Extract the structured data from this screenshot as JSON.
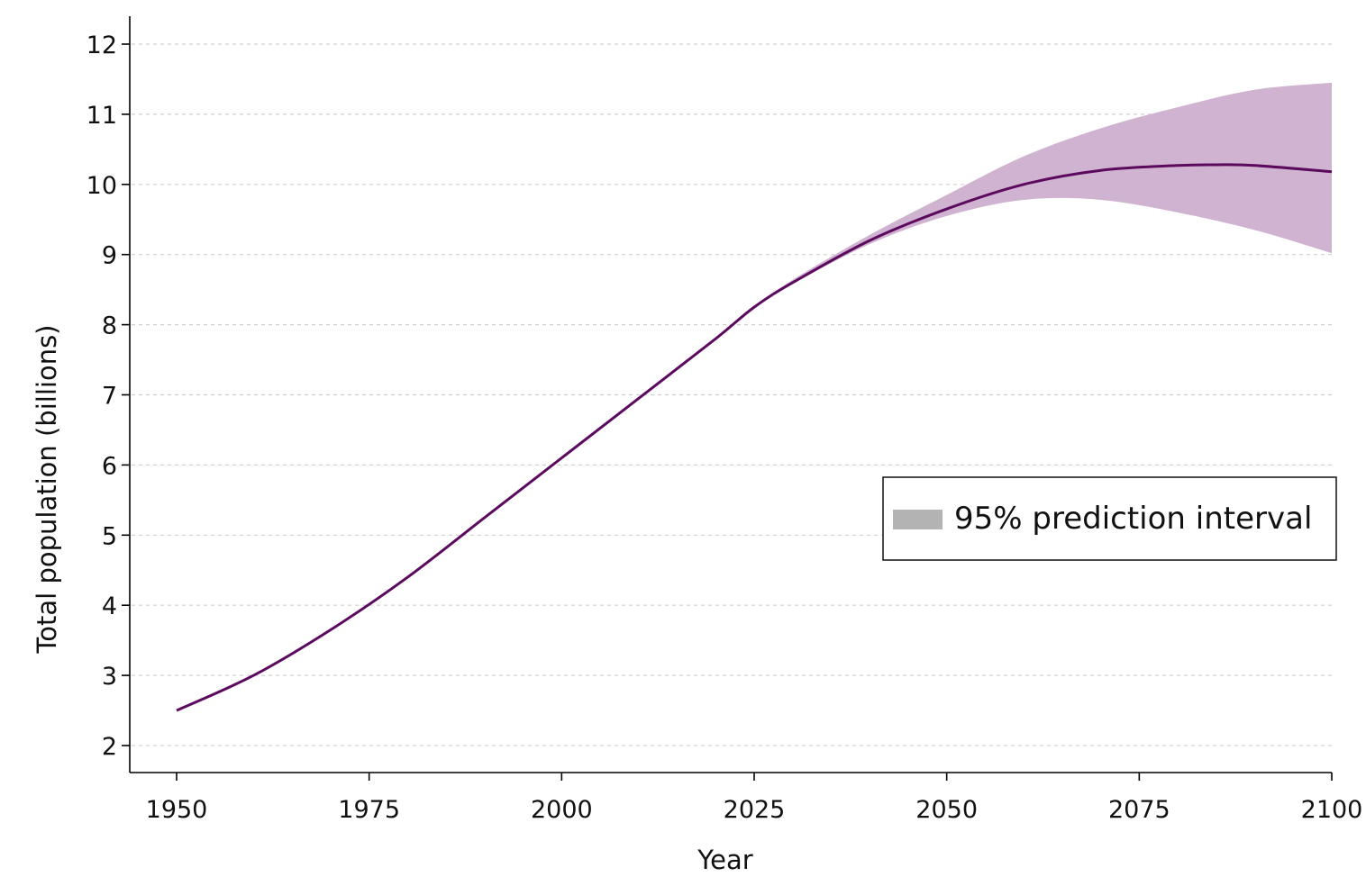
{
  "chart_data": {
    "type": "line",
    "title": "",
    "xlabel": "Year",
    "ylabel": "Total population (billions)",
    "xlim": [
      1950,
      2100
    ],
    "ylim": [
      1.6,
      12.4
    ],
    "x_ticks": [
      1950,
      1975,
      2000,
      2025,
      2050,
      2075,
      2100
    ],
    "y_ticks": [
      2,
      3,
      4,
      5,
      6,
      7,
      8,
      9,
      10,
      11,
      12
    ],
    "grid": "horizontal dashed",
    "legend": {
      "placement": "center-right",
      "label": "95% prediction interval",
      "swatch_color": "#b3b3b3"
    },
    "colors": {
      "line": "#5c0a5e",
      "band": "#cfb3d0",
      "grid": "#d0d0d0",
      "axis": "#000000"
    },
    "series": [
      {
        "x": [
          1950,
          1960,
          1970,
          1980,
          1990,
          2000,
          2010,
          2020,
          2025,
          2030,
          2040,
          2050,
          2060,
          2070,
          2080,
          2085,
          2090,
          2100
        ],
        "values": [
          2.5,
          3.0,
          3.65,
          4.4,
          5.25,
          6.1,
          6.95,
          7.8,
          8.25,
          8.6,
          9.2,
          9.65,
          10.0,
          10.2,
          10.27,
          10.28,
          10.27,
          10.18
        ]
      }
    ],
    "interval": {
      "x": [
        2025,
        2030,
        2040,
        2050,
        2060,
        2070,
        2080,
        2090,
        2100
      ],
      "lower": [
        8.25,
        8.58,
        9.15,
        9.55,
        9.78,
        9.78,
        9.6,
        9.35,
        9.02
      ],
      "upper": [
        8.25,
        8.64,
        9.28,
        9.85,
        10.4,
        10.8,
        11.1,
        11.35,
        11.45
      ]
    }
  }
}
